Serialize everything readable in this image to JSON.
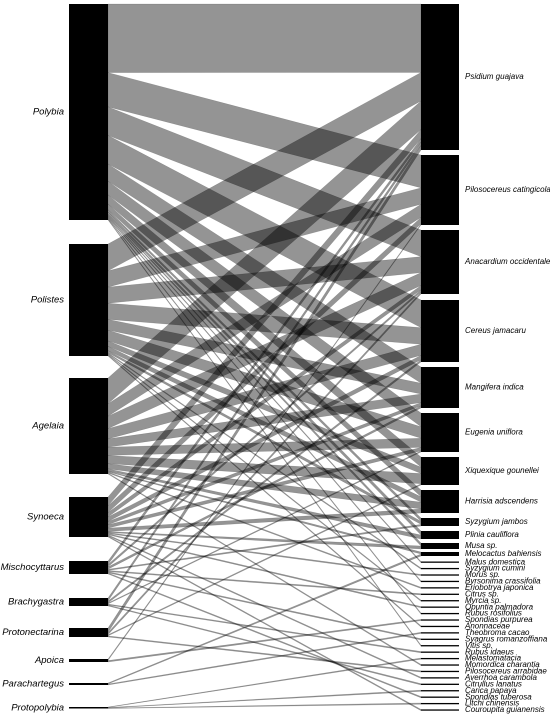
{
  "left_nodes": [
    "Polybia",
    "Polistes",
    "Agelaia",
    "Synoeca",
    "Mischocyttarus",
    "Brachygastra",
    "Protonectarina",
    "Apoica",
    "Parachartegus",
    "Protopolybia"
  ],
  "right_nodes": [
    "Psidium guajava",
    "Pilosocereus catingicola",
    "Anacardium occidentale",
    "Cereus jamacaru",
    "Mangifera indica",
    "Eugenia uniflora",
    "Xiquexique gounellei",
    "Harrisia adscendens",
    "Syzygium jambos",
    "Plinia cauliflora",
    "Musa sp.",
    "Melocactus bahiensis",
    "Malus domestica",
    "Syzygium cumini",
    "Morus sp.",
    "Byrsonima crassifolia",
    "Eriobotrya japonica",
    "Citrus sp.",
    "Myrcia sp.",
    "Opuntia palmadora",
    "Rubus rosifolius",
    "Spondias purpurea",
    "Anonnaceae",
    "Theobroma cacao",
    "Syagrus romanzoffiana",
    "Vitis sp.",
    "Rubus idaeus",
    "Melastomatacia",
    "Momordica charantia",
    "Pilosocereus arrabidae",
    "Averrhoa carambola",
    "Citrullus lanatus",
    "Carica papaya",
    "Spondias tuberosa",
    "Litchi chinensis",
    "Couroupita guianensis"
  ]
}
